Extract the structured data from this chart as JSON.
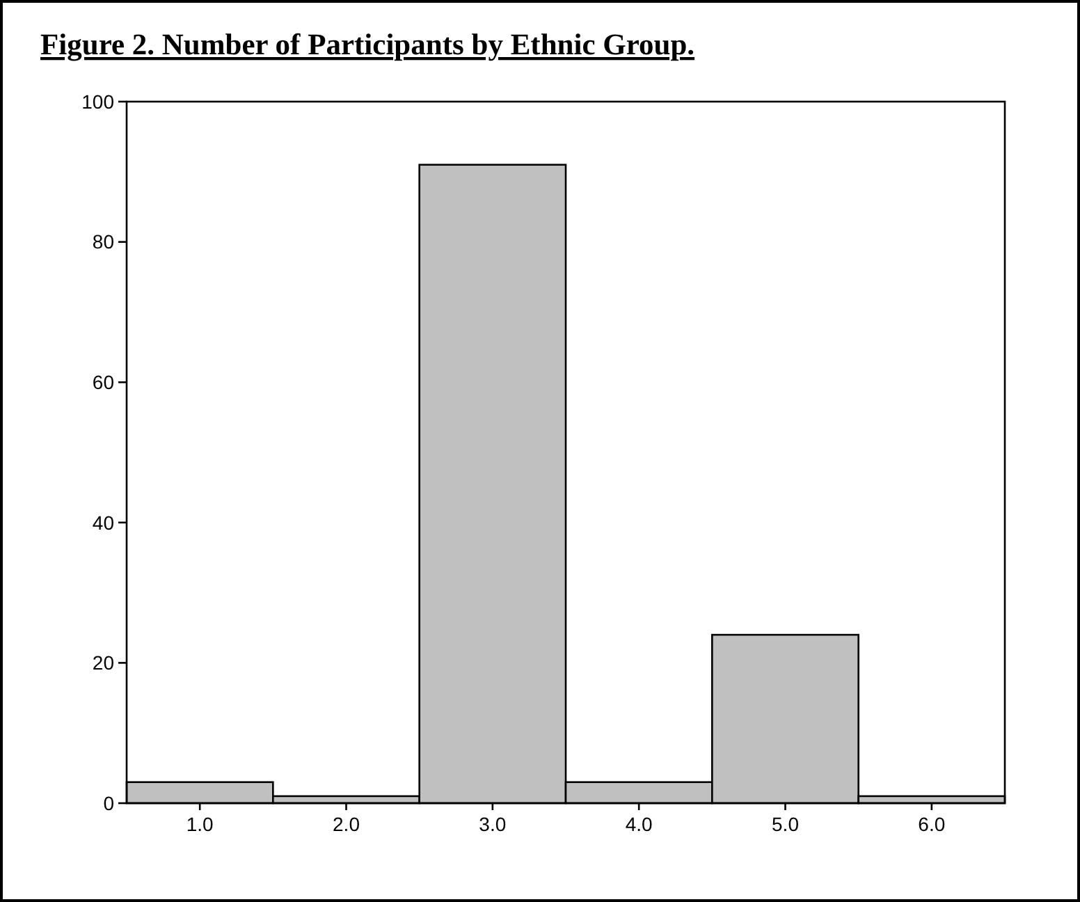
{
  "chart_data": {
    "type": "bar",
    "title": "Figure 2. Number of Participants by Ethnic Group.",
    "categories": [
      "1.0",
      "2.0",
      "3.0",
      "4.0",
      "5.0",
      "6.0"
    ],
    "values": [
      3,
      1,
      91,
      3,
      24,
      1
    ],
    "color": "#c0c0c0",
    "ylim": [
      0,
      100
    ],
    "yticks": [
      0,
      20,
      40,
      60,
      80,
      100
    ],
    "grid": false
  }
}
